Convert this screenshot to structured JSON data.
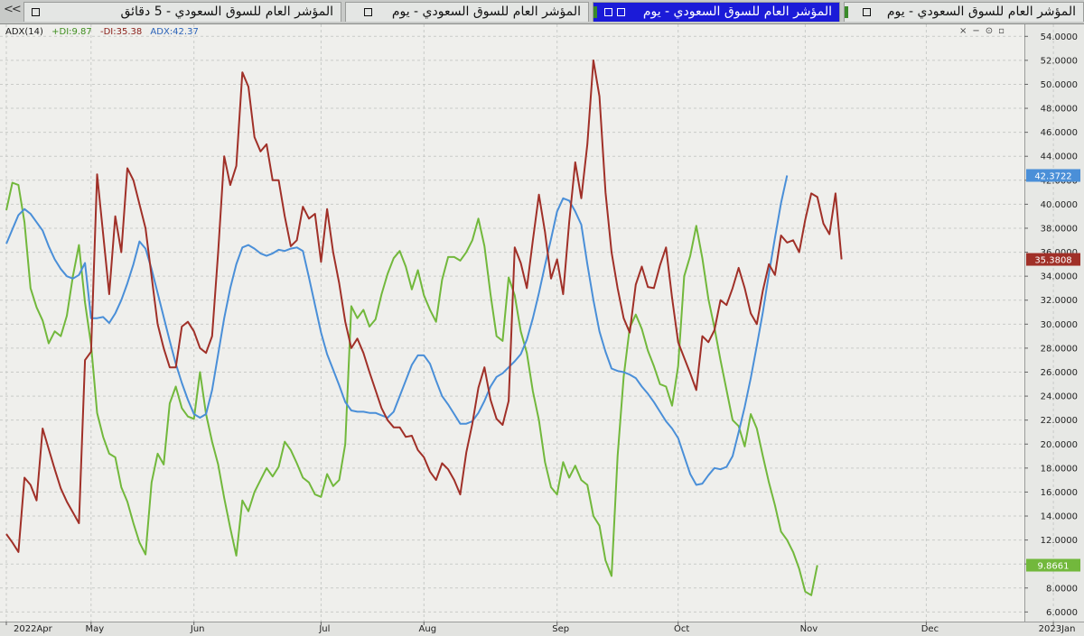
{
  "tabs": [
    {
      "title": "المؤشر العام للسوق السعودي - 5 دقائق",
      "active": false
    },
    {
      "title": "المؤشر العام للسوق السعودي - يوم",
      "active": false
    },
    {
      "title": "المؤشر العام للسوق السعودي - يوم",
      "active": true
    },
    {
      "title": "المؤشر العام للسوق السعودي - يوم",
      "active": false
    }
  ],
  "nav_back": "<<",
  "legend": {
    "title": "ADX(14)",
    "plus_di": "+DI:9.87",
    "minus_di": "-DI:35.38",
    "adx": "ADX:42.37"
  },
  "window_controls": [
    "×",
    "−",
    "⊙",
    "▫"
  ],
  "colors": {
    "plus_di": "#72b83c",
    "minus_di": "#a03028",
    "adx": "#4a8fd8"
  },
  "chart_data": {
    "type": "line",
    "ylim": [
      5.2,
      55
    ],
    "y_ticks": [
      6,
      8,
      10,
      12,
      14,
      16,
      18,
      20,
      22,
      24,
      26,
      28,
      30,
      32,
      34,
      36,
      38,
      40,
      42,
      44,
      46,
      48,
      50,
      52,
      54
    ],
    "y_tick_labels": [
      "6.0000",
      "8.0000",
      "10.0000",
      "12.0000",
      "14.0000",
      "16.0000",
      "18.0000",
      "20.0000",
      "22.0000",
      "24.0000",
      "26.0000",
      "28.0000",
      "30.0000",
      "32.0000",
      "34.0000",
      "36.0000",
      "38.0000",
      "40.0000",
      "42.0000",
      "44.0000",
      "46.0000",
      "48.0000",
      "50.0000",
      "52.0000",
      "54.0000"
    ],
    "x_labels": [
      "2022Apr",
      "May",
      "Jun",
      "Jul",
      "Aug",
      "Sep",
      "Oct",
      "Nov",
      "Dec",
      "2023Jan"
    ],
    "x_label_index": [
      0,
      14,
      31,
      52,
      69,
      91,
      111,
      132,
      152,
      173
    ],
    "value_labels": [
      {
        "series": "ADX",
        "text": "42.3722"
      },
      {
        "series": "-DI",
        "text": "35.3808"
      },
      {
        "series": "+DI",
        "text": "9.8661"
      }
    ],
    "series": [
      {
        "name": "ADX",
        "values": [
          36.7,
          37.9,
          39.1,
          39.6,
          39.2,
          38.5,
          37.8,
          36.5,
          35.4,
          34.6,
          34.0,
          33.8,
          34.1,
          35.1,
          30.5,
          30.5,
          30.6,
          30.1,
          30.9,
          32.0,
          33.4,
          35.0,
          36.9,
          36.3,
          34.6,
          32.6,
          30.6,
          28.6,
          26.7,
          25.1,
          23.7,
          22.5,
          22.2,
          22.5,
          24.5,
          27.5,
          30.5,
          33.0,
          35.0,
          36.4,
          36.6,
          36.3,
          35.9,
          35.7,
          35.9,
          36.2,
          36.1,
          36.3,
          36.4,
          36.1,
          33.9,
          31.6,
          29.3,
          27.5,
          26.2,
          24.9,
          23.5,
          22.8,
          22.7,
          22.7,
          22.6,
          22.6,
          22.4,
          22.2,
          22.7,
          24.0,
          25.3,
          26.6,
          27.4,
          27.4,
          26.7,
          25.3,
          24.0,
          23.3,
          22.5,
          21.7,
          21.7,
          21.9,
          22.6,
          23.6,
          24.8,
          25.6,
          25.9,
          26.4,
          26.9,
          27.5,
          28.7,
          30.5,
          32.6,
          34.9,
          37.1,
          39.4,
          40.5,
          40.3,
          39.4,
          38.3,
          35.0,
          32.0,
          29.4,
          27.7,
          26.3,
          26.1,
          26.0,
          25.8,
          25.5,
          24.8,
          24.2,
          23.5,
          22.7,
          21.9,
          21.3,
          20.5,
          19.0,
          17.5,
          16.6,
          16.7,
          17.4,
          18.0,
          17.9,
          18.1,
          19.0,
          21.0,
          23.1,
          25.5,
          28.2,
          31.0,
          34.2,
          37.2,
          40.1,
          42.4
        ]
      },
      {
        "name": "-DI",
        "values": [
          12.5,
          11.8,
          11.0,
          17.2,
          16.6,
          15.3,
          21.3,
          19.6,
          17.9,
          16.3,
          15.2,
          14.3,
          13.4,
          27.0,
          27.7,
          42.5,
          37.5,
          32.5,
          39.0,
          36.0,
          43.0,
          42.0,
          40.0,
          38.0,
          34.0,
          30.0,
          28.0,
          26.4,
          26.4,
          29.8,
          30.2,
          29.4,
          28.0,
          27.6,
          29.0,
          36.0,
          44.0,
          41.6,
          43.2,
          51.0,
          49.8,
          45.6,
          44.4,
          45.0,
          42.0,
          42.0,
          39.0,
          36.5,
          37.0,
          39.8,
          38.8,
          39.2,
          35.2,
          39.6,
          36.0,
          33.4,
          30.2,
          28.0,
          28.8,
          27.6,
          26.0,
          24.5,
          23.0,
          22.0,
          21.4,
          21.4,
          20.6,
          20.7,
          19.5,
          18.9,
          17.7,
          17.0,
          18.4,
          17.9,
          17.0,
          15.8,
          19.3,
          21.7,
          24.7,
          26.4,
          23.7,
          22.1,
          21.6,
          23.6,
          36.4,
          35.1,
          33.0,
          37.0,
          40.8,
          37.7,
          33.8,
          35.4,
          32.5,
          38.5,
          43.5,
          40.5,
          45.0,
          52.0,
          49.0,
          41.0,
          36.0,
          33.0,
          30.5,
          29.3,
          33.3,
          34.8,
          33.1,
          33.0,
          34.9,
          36.4,
          32.2,
          28.5,
          27.2,
          25.9,
          24.5,
          29.0,
          28.5,
          29.5,
          32.0,
          31.6,
          33.0,
          34.7,
          33.0,
          30.9,
          30.0,
          32.8,
          35.0,
          34.1,
          37.4,
          36.8,
          37.0,
          36.0,
          38.7,
          40.9,
          40.6,
          38.4,
          37.5,
          40.9,
          35.4
        ]
      },
      {
        "name": "+DI",
        "values": [
          39.5,
          41.8,
          41.6,
          38.5,
          33.0,
          31.4,
          30.3,
          28.4,
          29.4,
          29.0,
          30.7,
          34.0,
          36.6,
          31.8,
          28.3,
          22.6,
          20.6,
          19.2,
          18.9,
          16.4,
          15.2,
          13.4,
          11.8,
          10.8,
          16.8,
          19.2,
          18.3,
          23.4,
          24.8,
          23.0,
          22.3,
          22.1,
          26.0,
          22.5,
          20.2,
          18.3,
          15.5,
          13.0,
          10.7,
          15.3,
          14.4,
          16.0,
          17.0,
          18.0,
          17.3,
          18.1,
          20.2,
          19.5,
          18.4,
          17.2,
          16.8,
          15.8,
          15.6,
          17.5,
          16.5,
          17.0,
          20.0,
          31.5,
          30.5,
          31.2,
          29.8,
          30.4,
          32.5,
          34.2,
          35.5,
          36.1,
          34.8,
          32.9,
          34.5,
          32.4,
          31.2,
          30.2,
          33.7,
          35.6,
          35.6,
          35.3,
          36.0,
          37.0,
          38.8,
          36.5,
          32.5,
          29.0,
          28.6,
          33.9,
          32.4,
          29.4,
          27.6,
          24.4,
          22.0,
          18.5,
          16.4,
          15.8,
          18.5,
          17.2,
          18.2,
          17.0,
          16.6,
          14.0,
          13.2,
          10.3,
          9.0,
          19.0,
          25.6,
          29.7,
          30.8,
          29.6,
          27.8,
          26.5,
          25.0,
          24.8,
          23.2,
          26.5,
          34.0,
          35.7,
          38.2,
          35.5,
          32.1,
          29.7,
          27.0,
          24.5,
          22.0,
          21.5,
          19.8,
          22.5,
          21.3,
          19.0,
          16.8,
          14.9,
          12.7,
          12.0,
          11.0,
          9.6,
          7.7,
          7.4,
          9.9
        ]
      }
    ]
  }
}
